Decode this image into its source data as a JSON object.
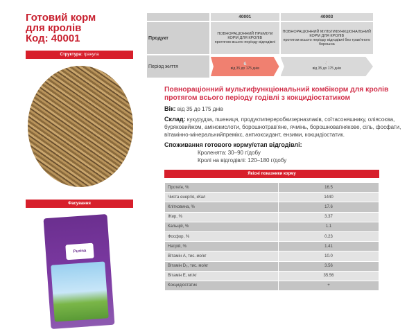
{
  "title": [
    "Готовий корм",
    "для кролів",
    "Код: 40001"
  ],
  "structure": {
    "label": "Структура:",
    "value": "гранула"
  },
  "packaging_label": "Фасування",
  "bag_logo": "Purina",
  "product_table": {
    "codes": [
      "40001",
      "40003"
    ],
    "row_product": "Продукт",
    "products": [
      {
        "name": "ПОВНОРАЦІОННИЙ ПРЕМІУМ КОРМ ДЛЯ КРОЛІВ",
        "desc": "протягом всього періоду відгодівлі"
      },
      {
        "name": "ПОВНОРАЦІОННИЙ МУЛЬТИФУНКЦІОНАЛЬНИЙ КОРМ ДЛЯ КРОЛІВ",
        "desc": "протягом всього періоду відгодівлі без трав'яного борошна"
      }
    ],
    "row_period": "Період життя",
    "periods": [
      "від 35 до 175 днів",
      "від 35 до 175 днів"
    ],
    "colors": {
      "active": "#f08070",
      "inactive": "#d9d9d9"
    }
  },
  "heading": "Повнораціонний мультифункціональний комбікорм для кролів протягом всього періоду годівлі з кокцидіостатиком",
  "age": {
    "label": "Вік:",
    "value": "від 35 до 175 днів"
  },
  "composition": {
    "label": "Склад:",
    "value": "кукурудза, пшениця, продуктипереробкизерназлаків, соїтасоняшнику, оліясоєва, буряковийжом, амінокислоти, борошнотрав'яне, ячмінь, борошновапнякове, сіль, фосфати, вітамінно-мінеральнийпремікс, антиоксидант, ензими, кокцидіостатик."
  },
  "consumption": {
    "label": "Споживання готового корму/етап відгодівлі:",
    "lines": [
      "Кроленята: 30–90 г/добу",
      "Кролі на відгодівлі: 120–180 г/добу"
    ]
  },
  "quality": {
    "header": "Якісні показники корму",
    "rows": [
      {
        "name": "Протеїн, %",
        "value": "16.5"
      },
      {
        "name": "Чиста енергія, кКал",
        "value": "1440"
      },
      {
        "name": "Клітковина, %",
        "value": "17.6"
      },
      {
        "name": "Жир, %",
        "value": "3.37"
      },
      {
        "name": "Кальцій, %",
        "value": "1.1"
      },
      {
        "name": "Фосфор, %",
        "value": "0.23"
      },
      {
        "name": "Натрій, %",
        "value": "1.41"
      },
      {
        "name": "Вітамін А, тис. мо/кг",
        "value": "10.0"
      },
      {
        "name": "Вітамін D₃, тис. мо/кг",
        "value": "3.56"
      },
      {
        "name": "Вітамін Е, мг/кг",
        "value": "35.56"
      },
      {
        "name": "Кокцидіостатик",
        "value": "+"
      }
    ]
  },
  "accent": "#d71f2b"
}
